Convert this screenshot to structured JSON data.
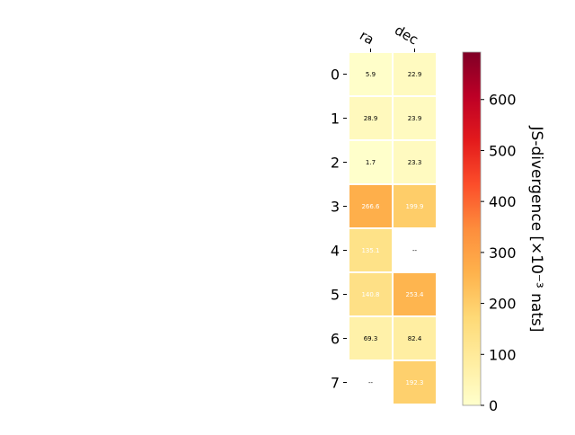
{
  "chart_data": {
    "type": "heatmap",
    "columns": [
      "ra",
      "dec"
    ],
    "rows": [
      "0",
      "1",
      "2",
      "3",
      "4",
      "5",
      "6",
      "7"
    ],
    "values": [
      [
        5.9,
        22.9
      ],
      [
        28.9,
        23.9
      ],
      [
        1.7,
        23.3
      ],
      [
        266.6,
        199.9
      ],
      [
        135.1,
        null
      ],
      [
        140.8,
        253.4
      ],
      [
        69.3,
        82.4
      ],
      [
        null,
        192.3
      ]
    ],
    "cell_labels": [
      [
        "5.9",
        "22.9"
      ],
      [
        "28.9",
        "23.9"
      ],
      [
        "1.7",
        "23.3"
      ],
      [
        "266.6",
        "199.9"
      ],
      [
        "135.1",
        "--"
      ],
      [
        "140.8",
        "253.4"
      ],
      [
        "69.3",
        "82.4"
      ],
      [
        "--",
        "192.3"
      ]
    ],
    "colorbar": {
      "label": "JS-divergence [×10⁻³ nats]",
      "min": 0,
      "max": 693,
      "ticks": [
        0,
        100,
        200,
        300,
        400,
        500,
        600
      ],
      "tick_labels": [
        "0",
        "100",
        "200",
        "300",
        "400",
        "500",
        "600"
      ],
      "colormap": "YlOrRd"
    }
  }
}
